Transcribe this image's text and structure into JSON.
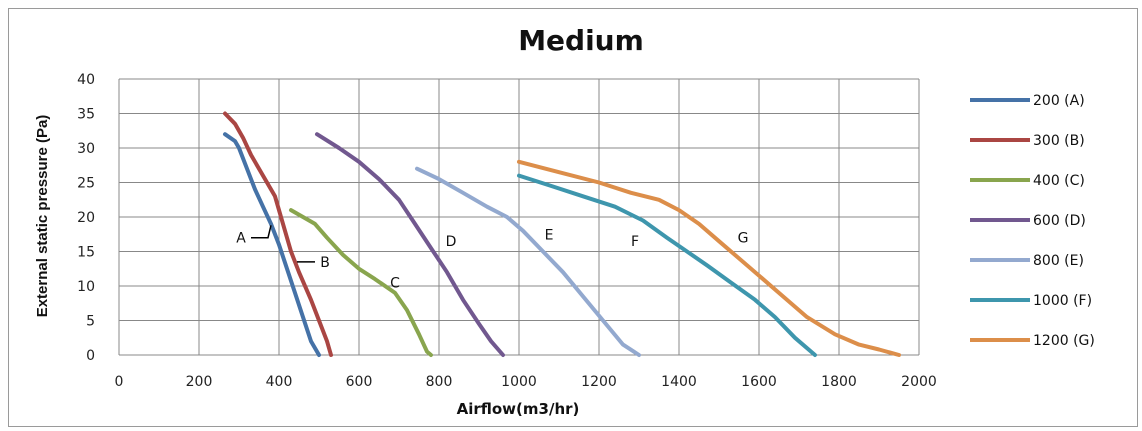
{
  "chart_data": {
    "type": "line",
    "title": "Medium",
    "xlabel": "Airflow(m3/hr)",
    "ylabel": "External static pressure (Pa)",
    "xlim": [
      0,
      2000
    ],
    "ylim": [
      0,
      40
    ],
    "xticks": [
      0,
      200,
      400,
      600,
      800,
      1000,
      1200,
      1400,
      1600,
      1800,
      2000
    ],
    "yticks": [
      0,
      5,
      10,
      15,
      20,
      25,
      30,
      35,
      40
    ],
    "grid": true,
    "legend_position": "right",
    "series": [
      {
        "name": "200 (A)",
        "color": "#4572a7",
        "x": [
          265,
          290,
          300,
          320,
          340,
          360,
          380,
          400,
          420,
          440,
          460,
          480,
          500
        ],
        "y": [
          32,
          31,
          30,
          27,
          24,
          21.5,
          19,
          16,
          12.5,
          9,
          5.5,
          2,
          0
        ]
      },
      {
        "name": "300 (B)",
        "color": "#aa4643",
        "x": [
          265,
          290,
          310,
          330,
          360,
          390,
          410,
          430,
          450,
          480,
          500,
          520,
          530
        ],
        "y": [
          35,
          33.5,
          31.5,
          29,
          26,
          23,
          19,
          15,
          12,
          8,
          5,
          2,
          0
        ]
      },
      {
        "name": "400 (C)",
        "color": "#89a54e",
        "x": [
          430,
          460,
          490,
          520,
          560,
          600,
          640,
          690,
          720,
          750,
          770,
          780
        ],
        "y": [
          21,
          20,
          19,
          17,
          14.5,
          12.5,
          11,
          9,
          6.5,
          3,
          0.5,
          0
        ]
      },
      {
        "name": "600 (D)",
        "color": "#71588f",
        "x": [
          495,
          550,
          600,
          650,
          700,
          740,
          780,
          820,
          860,
          900,
          930,
          960
        ],
        "y": [
          32,
          30,
          28,
          25.5,
          22.5,
          19,
          15.5,
          12,
          8,
          4.5,
          2,
          0
        ]
      },
      {
        "name": "800 (E)",
        "color": "#93a9cf",
        "x": [
          745,
          800,
          860,
          920,
          970,
          1010,
          1060,
          1110,
          1160,
          1210,
          1260,
          1300
        ],
        "y": [
          27,
          25.5,
          23.5,
          21.5,
          20,
          18,
          15,
          12,
          8.5,
          5,
          1.5,
          0
        ]
      },
      {
        "name": "1000 (F)",
        "color": "#3e96ad",
        "x": [
          1000,
          1080,
          1160,
          1240,
          1310,
          1370,
          1420,
          1470,
          1530,
          1590,
          1640,
          1690,
          1740
        ],
        "y": [
          26,
          24.5,
          23,
          21.5,
          19.5,
          17,
          15,
          13,
          10.5,
          8,
          5.5,
          2.5,
          0
        ]
      },
      {
        "name": "1200 (G)",
        "color": "#dc8e4a",
        "x": [
          1000,
          1100,
          1200,
          1280,
          1350,
          1400,
          1450,
          1500,
          1550,
          1600,
          1660,
          1720,
          1790,
          1850,
          1900,
          1950
        ],
        "y": [
          28,
          26.5,
          25,
          23.5,
          22.5,
          21,
          19,
          16.5,
          14,
          11.5,
          8.5,
          5.5,
          3,
          1.5,
          0.8,
          0
        ]
      }
    ],
    "annotations": [
      {
        "text": "A",
        "x": 305,
        "y": 17
      },
      {
        "text": "B",
        "x": 515,
        "y": 13.5
      },
      {
        "text": "C",
        "x": 690,
        "y": 10.5
      },
      {
        "text": "D",
        "x": 830,
        "y": 16.5
      },
      {
        "text": "E",
        "x": 1075,
        "y": 17.5
      },
      {
        "text": "F",
        "x": 1290,
        "y": 16.5
      },
      {
        "text": "G",
        "x": 1560,
        "y": 17
      }
    ]
  }
}
